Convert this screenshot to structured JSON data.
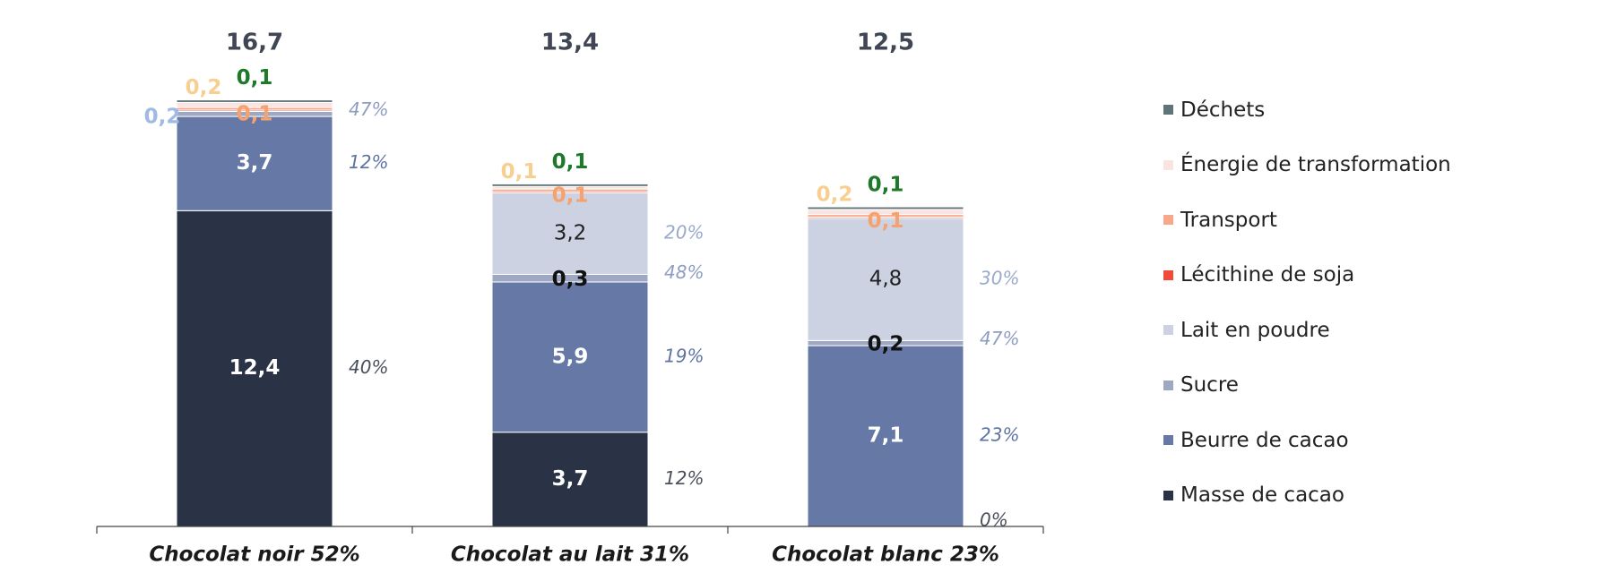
{
  "chart_data": {
    "type": "bar",
    "stacked": true,
    "categories": [
      "Chocolat noir 52%",
      "Chocolat au lait 31%",
      "Chocolat blanc 23%"
    ],
    "totals": [
      "16,7",
      "13,4",
      "12,5"
    ],
    "ylim": [
      0,
      16.7
    ],
    "grid": false,
    "legend_position": "right",
    "series": [
      {
        "name": "Masse de cacao",
        "color": "#2a3246",
        "values": [
          12.4,
          3.7,
          0
        ],
        "labels": [
          "12,4",
          "3,7",
          ""
        ],
        "label_color": "#ffffff",
        "label_style": "bold",
        "pcts": [
          "40%",
          "12%",
          "0%"
        ],
        "pct_color": "#4a4f5c"
      },
      {
        "name": "Beurre de cacao",
        "color": "#6679a6",
        "values": [
          3.7,
          5.9,
          7.1
        ],
        "labels": [
          "3,7",
          "5,9",
          "7,1"
        ],
        "label_color": "#ffffff",
        "label_style": "bold",
        "pcts": [
          "12%",
          "19%",
          "23%"
        ],
        "pct_color": "#5e73a3"
      },
      {
        "name": "Sucre",
        "color": "#9ea8c2",
        "values": [
          0.2,
          0.3,
          0.2
        ],
        "labels": [
          "0,2",
          "0,3",
          "0,2"
        ],
        "label_color": "#9fbbe4",
        "label_style": "bold",
        "label_colors": [
          "#9fbbe4",
          "#111111",
          "#111111"
        ],
        "pcts": [
          "47%",
          "48%",
          "47%"
        ],
        "pct_color": "#8e9dc0"
      },
      {
        "name": "Lait en poudre",
        "color": "#ccd2e2",
        "values": [
          0,
          3.2,
          4.8
        ],
        "labels": [
          "",
          "3,2",
          "4,8"
        ],
        "label_color": "#222222",
        "label_style": "normal",
        "pcts": [
          "",
          "20%",
          "30%"
        ],
        "pct_color": "#9aa9cc"
      },
      {
        "name": "Lécithine de soja",
        "color": "#f24a3a",
        "values": [
          0.05,
          0.05,
          0.05
        ],
        "labels": [
          "",
          "",
          ""
        ],
        "label_color": "#222222",
        "label_style": "normal",
        "pcts": [
          "",
          "",
          ""
        ],
        "pct_color": "#888888"
      },
      {
        "name": "Transport",
        "color": "#f7a88a",
        "values": [
          0.1,
          0.1,
          0.1
        ],
        "labels": [
          "0,1",
          "0,1",
          "0,1"
        ],
        "label_color": "#f5a26f",
        "label_style": "bold",
        "pcts": [
          "",
          "",
          ""
        ],
        "pct_color": "#888888"
      },
      {
        "name": "Énergie de transformation",
        "color": "#fbe3e1",
        "values": [
          0.2,
          0.1,
          0.2
        ],
        "labels": [
          "0,2",
          "0,1",
          "0,2"
        ],
        "label_color": "#f8cf91",
        "label_style": "bold",
        "pcts": [
          "",
          "",
          ""
        ],
        "pct_color": "#888888"
      },
      {
        "name": "Déchets",
        "color": "#5f7476",
        "values": [
          0.1,
          0.1,
          0.1
        ],
        "labels": [
          "0,1",
          "0,1",
          "0,1"
        ],
        "label_color": "#1e7a2a",
        "label_style": "bold",
        "pcts": [
          "",
          "",
          ""
        ],
        "pct_color": "#888888"
      }
    ]
  },
  "legend": {
    "items": [
      {
        "label": "Déchets",
        "color": "#5f7476"
      },
      {
        "label": "Énergie de transformation",
        "color": "#fbe3e1"
      },
      {
        "label": "Transport",
        "color": "#f7a88a"
      },
      {
        "label": "Lécithine de soja",
        "color": "#f24a3a"
      },
      {
        "label": "Lait en poudre",
        "color": "#ccd2e2"
      },
      {
        "label": "Sucre",
        "color": "#9ea8c2"
      },
      {
        "label": "Beurre de cacao",
        "color": "#6679a6"
      },
      {
        "label": "Masse de cacao",
        "color": "#2a3246"
      }
    ]
  }
}
